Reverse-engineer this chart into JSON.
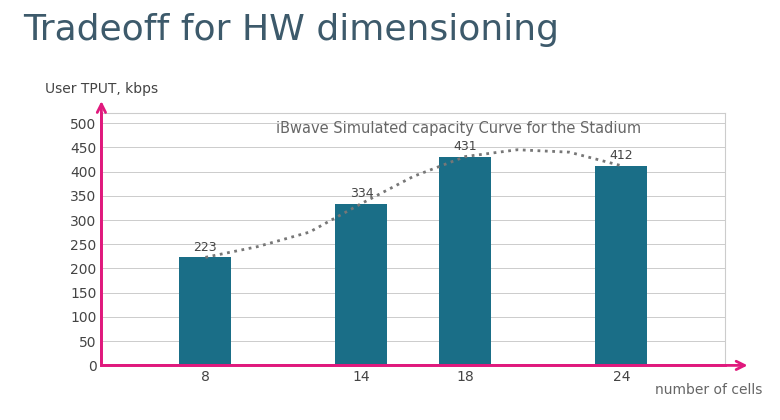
{
  "title": "Tradeoff for HW dimensioning",
  "subtitle": "iBwave Simulated capacity Curve for the Stadium",
  "ylabel": "User TPUT, kbps",
  "xlabel": "number of cells",
  "categories": [
    8,
    14,
    18,
    24
  ],
  "bar_values": [
    223,
    334,
    431,
    412
  ],
  "dot_x": [
    8,
    10,
    12,
    14,
    16,
    18,
    20,
    22,
    24
  ],
  "dot_y": [
    223,
    245,
    275,
    334,
    390,
    431,
    445,
    440,
    412
  ],
  "bar_color": "#1a6e87",
  "dotted_color": "#777777",
  "axis_color": "#e0197d",
  "title_color": "#3d5a6b",
  "subtitle_color": "#666666",
  "grid_color": "#cccccc",
  "tick_color": "#444444",
  "value_color": "#444444",
  "xlabel_color": "#666666",
  "ylim": [
    0,
    520
  ],
  "yticks": [
    0,
    50,
    100,
    150,
    200,
    250,
    300,
    350,
    400,
    450,
    500
  ],
  "bar_width": 2.0,
  "title_fontsize": 26,
  "subtitle_fontsize": 10.5,
  "tick_fontsize": 10,
  "label_fontsize": 10,
  "value_fontsize": 9
}
